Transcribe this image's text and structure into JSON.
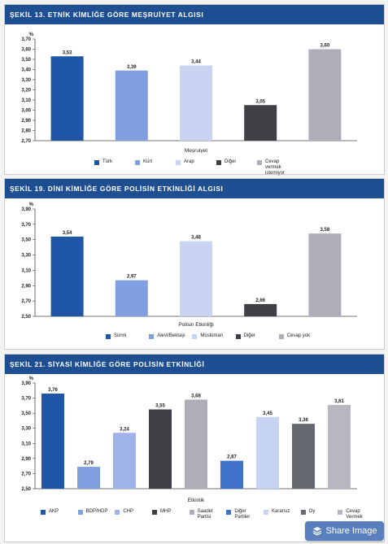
{
  "colors": {
    "header": "#1f4f93",
    "palette5": [
      "#1f56a8",
      "#7f9fde",
      "#c9d4f3",
      "#3f3f46",
      "#b0adb9"
    ],
    "palette10": [
      "#1f56a8",
      "#7f9fde",
      "#9fb3ea",
      "#3f3f46",
      "#b0adb9",
      "#3f72c9",
      "#c6d2f2",
      "#666870",
      "#b8b6c0",
      "#d4d7df"
    ]
  },
  "share": {
    "label": "Share Image",
    "icon": "layers-icon"
  },
  "chart_data": [
    {
      "type": "bar",
      "title": "ŞEKİL 13. ETNİK KİMLİĞE GÖRE MEŞRUİYET ALGISI",
      "unit": "%",
      "xlabel": "Meşruiyet",
      "ylim": [
        2.7,
        3.7
      ],
      "ticks": [
        "3,70",
        "3,60",
        "3,50",
        "3,40",
        "3,30",
        "3,20",
        "3,10",
        "3,00",
        "2,90",
        "2,80",
        "2,70"
      ],
      "categories": [
        "Türk",
        "Kürt",
        "Arap",
        "Diğer",
        "Cevap vermek istemiyor"
      ],
      "values": [
        3.53,
        3.39,
        3.44,
        3.05,
        3.6
      ],
      "value_labels": [
        "3,53",
        "3,39",
        "3,44",
        "3,05",
        "3,60"
      ]
    },
    {
      "type": "bar",
      "title": "ŞEKİL 19. DİNİ KİMLİĞE GÖRE POLİSİN ETKİNLİĞİ ALGISI",
      "unit": "%",
      "xlabel": "Polisin Etkinliği",
      "ylim": [
        2.5,
        3.9
      ],
      "ticks": [
        "3,90",
        "3,70",
        "3,50",
        "3,30",
        "3,10",
        "2,90",
        "2,70",
        "2,50"
      ],
      "categories": [
        "Sünni",
        "Alevi/Bektaşi",
        "Müslüman",
        "Diğer",
        "Cevap yok"
      ],
      "values": [
        3.54,
        2.97,
        3.48,
        2.66,
        3.58
      ],
      "value_labels": [
        "3,54",
        "2,97",
        "3,48",
        "2,66",
        "3,58"
      ]
    },
    {
      "type": "bar",
      "title": "ŞEKİL 21. SİYASİ KİMLİĞE GÖRE POLİSİN ETKİNLİĞİ",
      "unit": "%",
      "xlabel": "Etkinlik",
      "ylim": [
        2.5,
        3.9
      ],
      "ticks": [
        "3,90",
        "3,70",
        "3,50",
        "3,30",
        "3,10",
        "2,90",
        "2,70",
        "2,50"
      ],
      "categories": [
        "AKP",
        "BDP/HDP",
        "CHP",
        "MHP",
        "Saadet Partisi",
        "Diğer Partiler",
        "Kararsız",
        "Oy",
        "Cevap Vermek"
      ],
      "values": [
        3.76,
        2.79,
        3.24,
        3.55,
        3.68,
        2.87,
        3.45,
        3.36,
        3.61
      ],
      "value_labels": [
        "3,76",
        "2,79",
        "3,24",
        "3,55",
        "3,68",
        "2,87",
        "3,45",
        "3,36",
        "3,61"
      ]
    }
  ]
}
